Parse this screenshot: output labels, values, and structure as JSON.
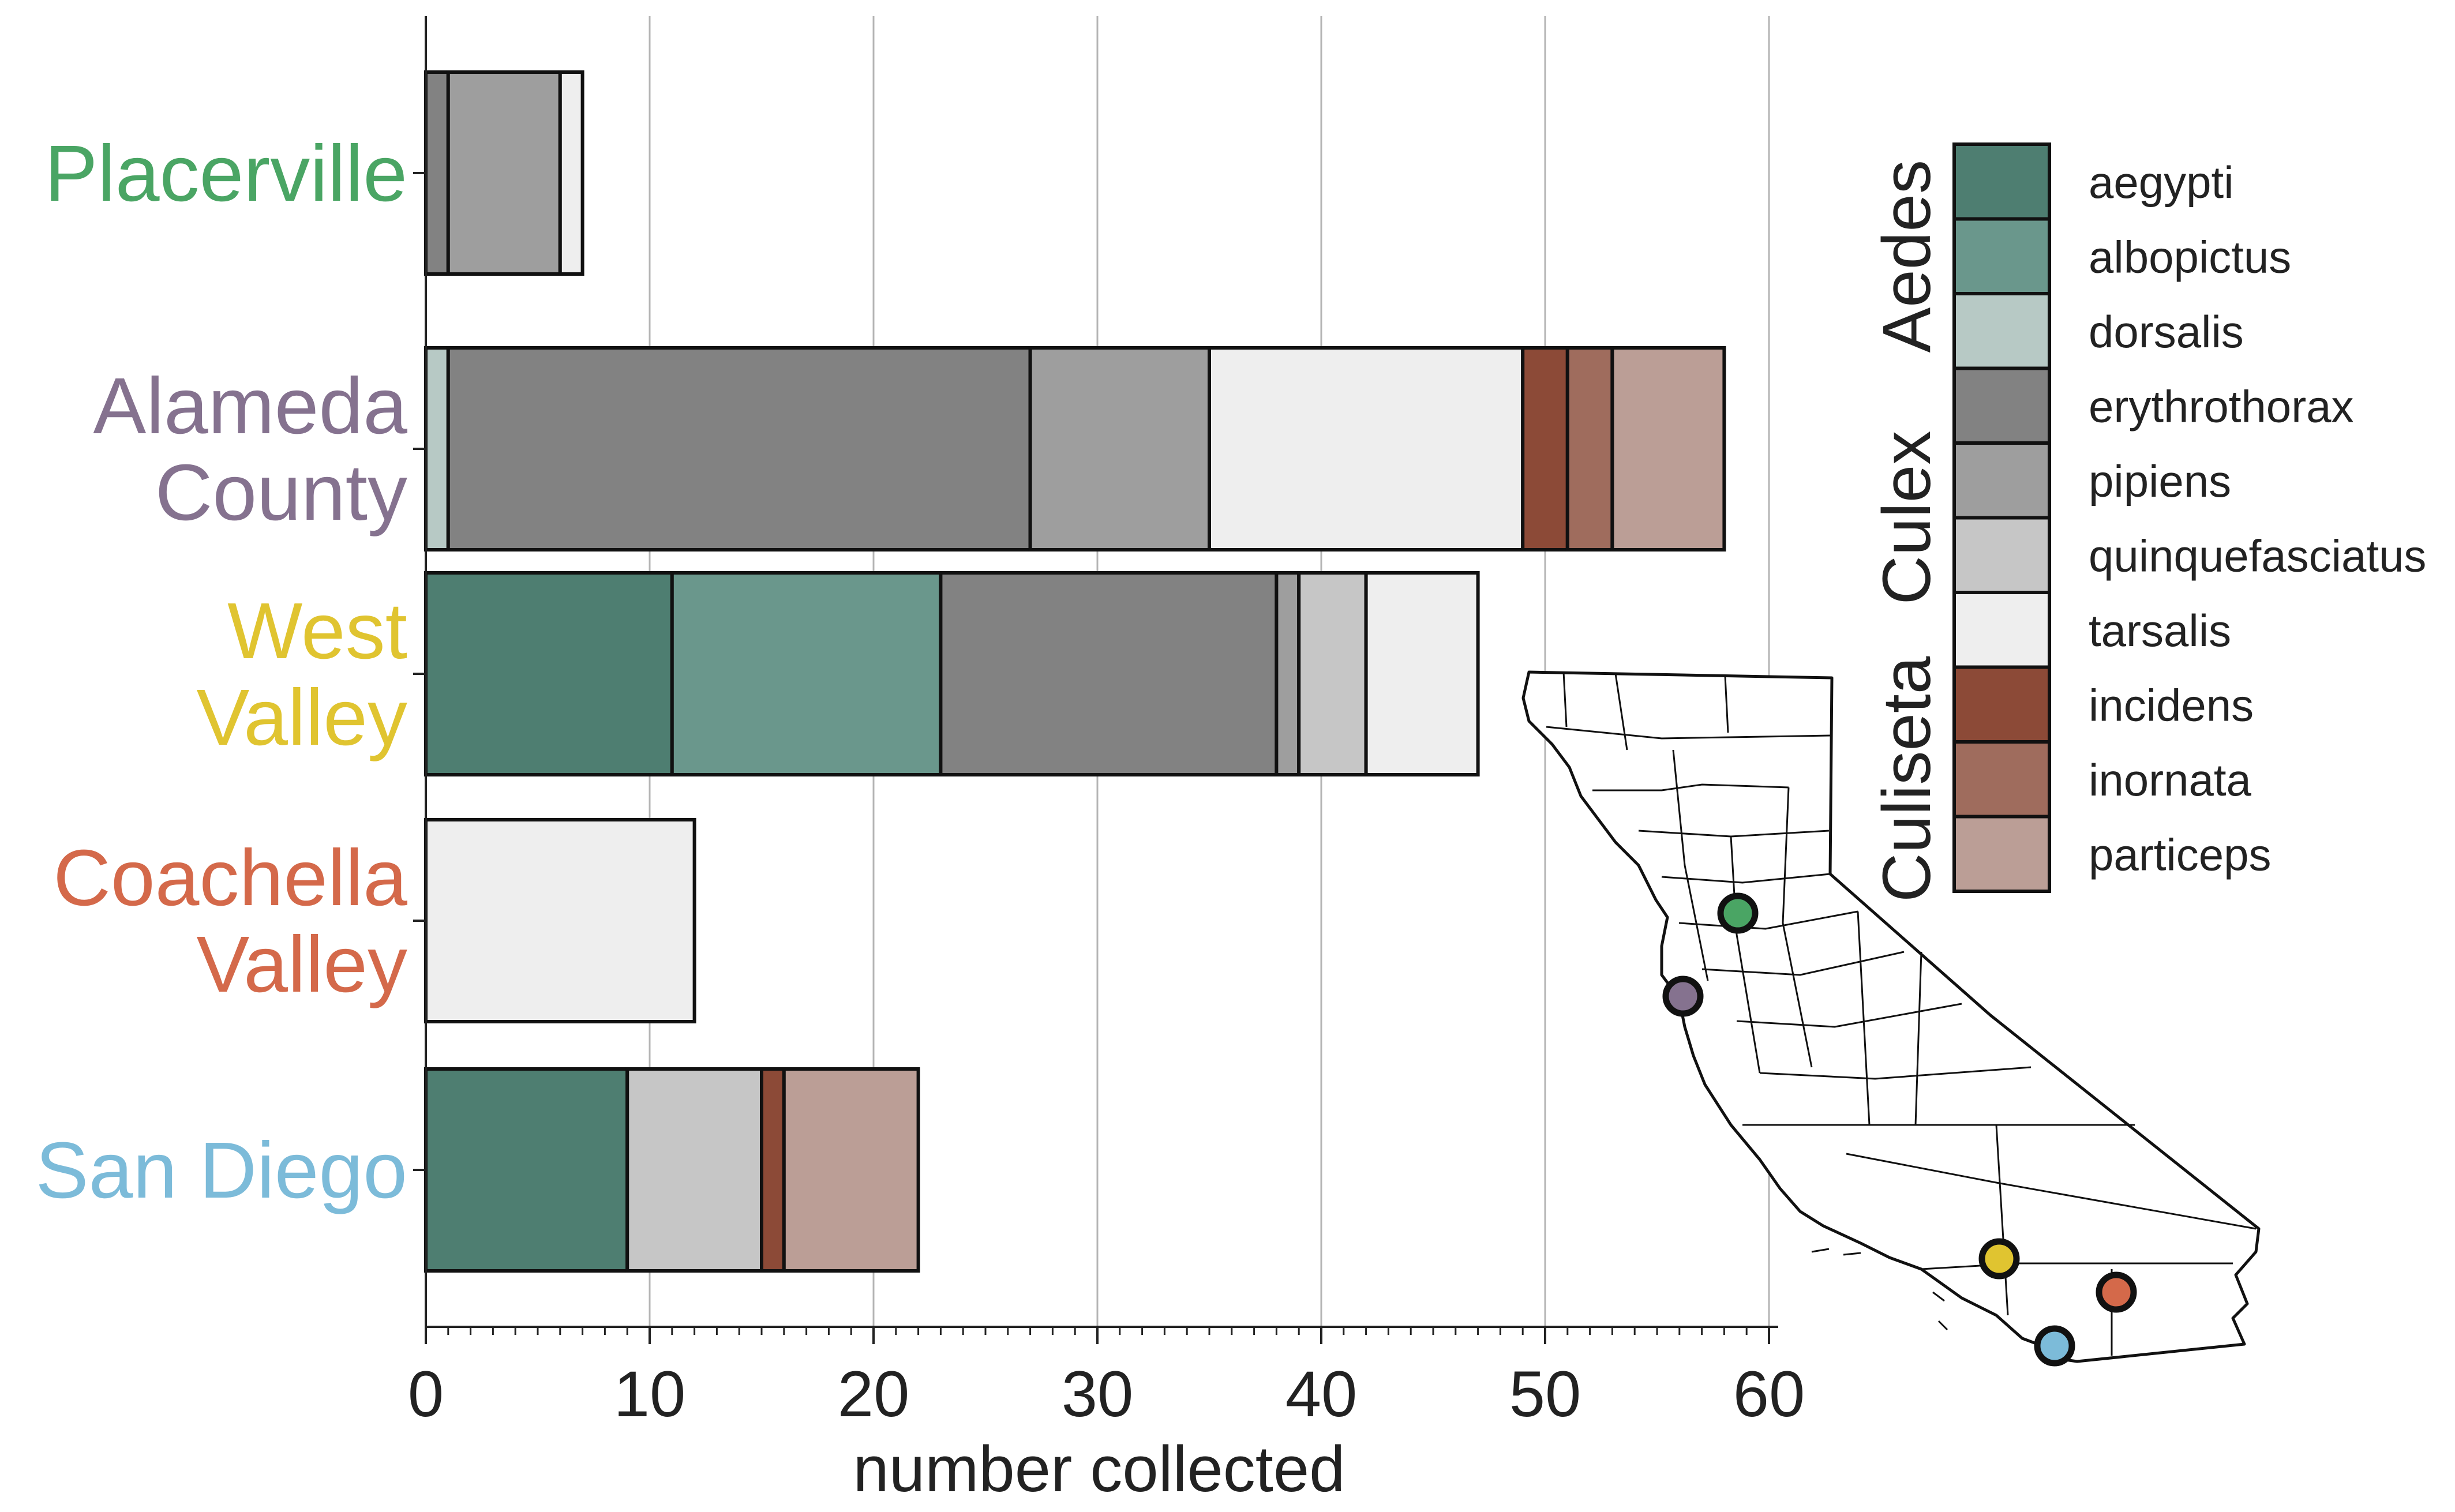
{
  "chart_data": {
    "type": "bar",
    "orientation": "horizontal",
    "stacked": true,
    "xlabel": "number collected",
    "xlim": [
      0,
      60
    ],
    "xticks": [
      "0",
      "10",
      "20",
      "30",
      "40",
      "50",
      "60"
    ],
    "grid": "vertical",
    "categories": [
      {
        "id": "placerville",
        "lines": [
          "Placerville"
        ],
        "color": "#4aa564"
      },
      {
        "id": "alameda",
        "lines": [
          "Alameda",
          "County"
        ],
        "color": "#85728f"
      },
      {
        "id": "west-valley",
        "lines": [
          "West",
          "Valley"
        ],
        "color": "#e0c430"
      },
      {
        "id": "coachella",
        "lines": [
          "Coachella",
          "Valley"
        ],
        "color": "#d4694a"
      },
      {
        "id": "san-diego",
        "lines": [
          "San Diego"
        ],
        "color": "#7cbbd9"
      }
    ],
    "series": [
      {
        "name": "aegypti",
        "genus": "Aedes",
        "color": "#4e7e71",
        "values": [
          0,
          0,
          11,
          0,
          9
        ]
      },
      {
        "name": "albopictus",
        "genus": "Aedes",
        "color": "#6a978c",
        "values": [
          0,
          0,
          12,
          0,
          0
        ]
      },
      {
        "name": "dorsalis",
        "genus": "Aedes",
        "color": "#b7c9c5",
        "values": [
          0,
          1,
          0,
          0,
          0
        ]
      },
      {
        "name": "erythrothorax",
        "genus": "Culex",
        "color": "#828282",
        "values": [
          1,
          26,
          15,
          0,
          0
        ]
      },
      {
        "name": "pipiens",
        "genus": "Culex",
        "color": "#9e9e9e",
        "values": [
          5,
          8,
          1,
          0,
          0
        ]
      },
      {
        "name": "quinquefasciatus",
        "genus": "Culex",
        "color": "#c6c6c6",
        "values": [
          0,
          0,
          3,
          0,
          6
        ]
      },
      {
        "name": "tarsalis",
        "genus": "Culex",
        "color": "#eeeeee",
        "values": [
          1,
          14,
          5,
          12,
          0
        ]
      },
      {
        "name": "incidens",
        "genus": "Culiseta",
        "color": "#8c4a37",
        "values": [
          0,
          2,
          0,
          0,
          1
        ]
      },
      {
        "name": "inornata",
        "genus": "Culiseta",
        "color": "#9f6c5d",
        "values": [
          0,
          2,
          0,
          0,
          0
        ]
      },
      {
        "name": "particeps",
        "genus": "Culiseta",
        "color": "#bb9e96",
        "values": [
          0,
          5,
          0,
          0,
          6
        ]
      }
    ],
    "legend": {
      "placement": "right",
      "genera": [
        {
          "name": "Aedes",
          "series": [
            "aegypti",
            "albopictus",
            "dorsalis"
          ]
        },
        {
          "name": "Culex",
          "series": [
            "erythrothorax",
            "pipiens",
            "quinquefasciatus",
            "tarsalis"
          ]
        },
        {
          "name": "Culiseta",
          "series": [
            "incidens",
            "inornata",
            "particeps"
          ]
        }
      ]
    },
    "inset": {
      "type": "map",
      "region": "California",
      "markers": [
        {
          "site": "placerville",
          "color": "#4aa564"
        },
        {
          "site": "alameda",
          "color": "#85728f"
        },
        {
          "site": "west-valley",
          "color": "#e0c430"
        },
        {
          "site": "coachella",
          "color": "#d4694a"
        },
        {
          "site": "san-diego",
          "color": "#7cbbd9"
        }
      ]
    }
  }
}
